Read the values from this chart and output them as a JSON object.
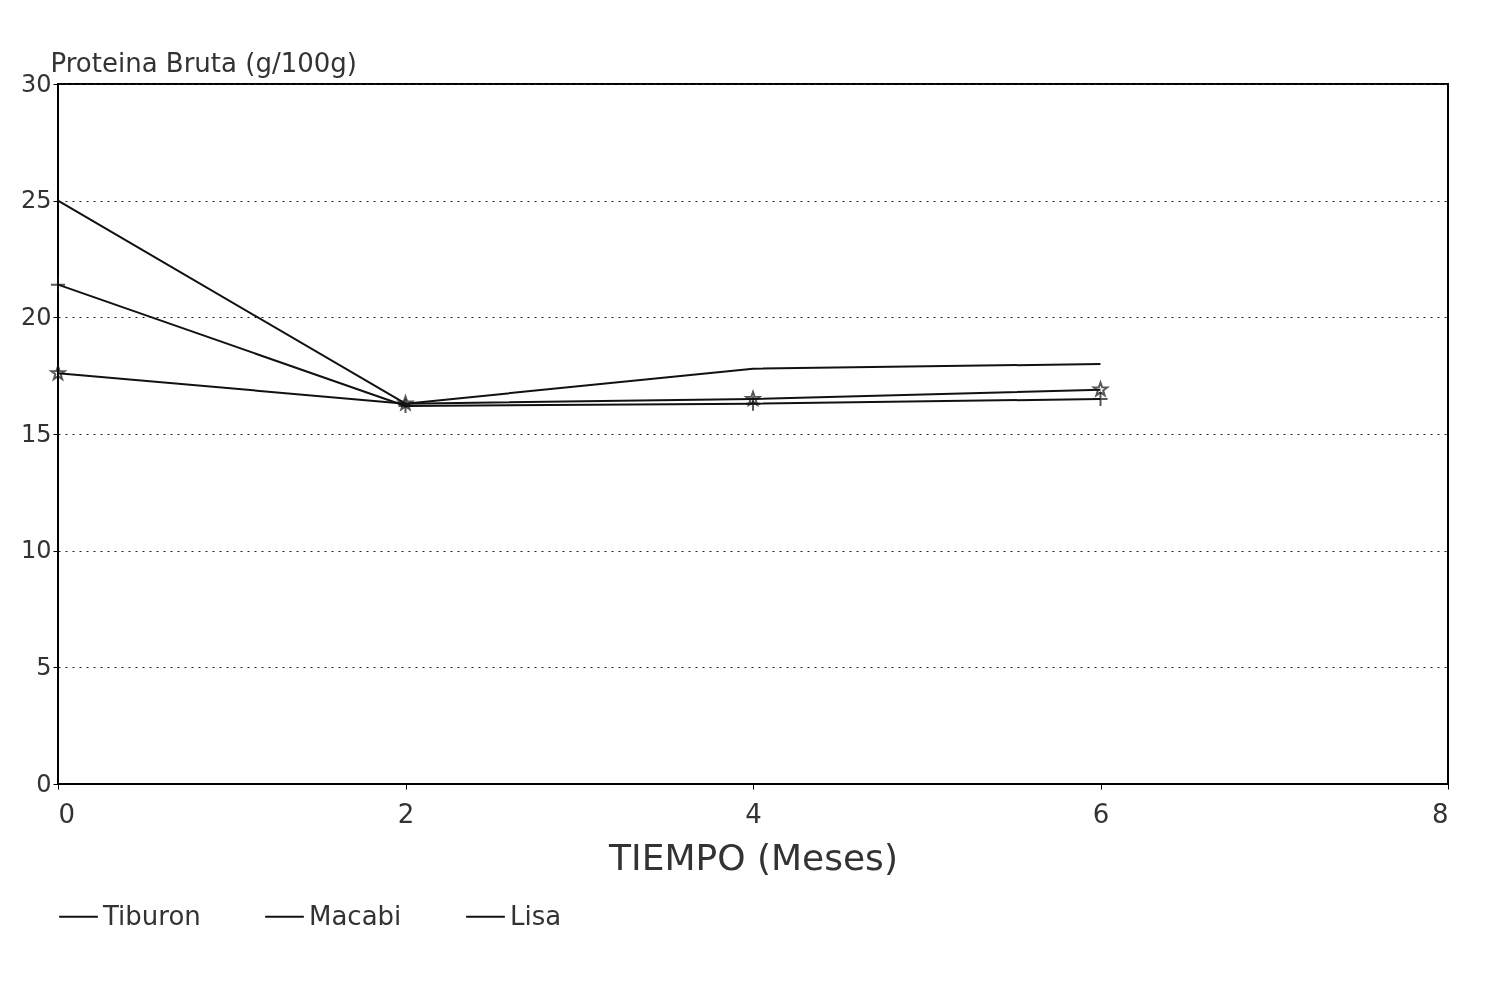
{
  "chart_data": {
    "type": "line",
    "xlabel": "TIEMPO (Meses)",
    "ylabel": "Proteina Bruta (g/100g)",
    "x": [
      0,
      2,
      4,
      6
    ],
    "series": [
      {
        "name": "Tiburon",
        "color": "#111111",
        "marker": "none",
        "values": [
          25,
          16.3,
          17.8,
          18.0
        ]
      },
      {
        "name": "Macabi",
        "color": "#111111",
        "marker": "cross",
        "values": [
          21.4,
          16.2,
          16.3,
          16.5
        ]
      },
      {
        "name": "Lisa",
        "color": "#111111",
        "marker": "star",
        "values": [
          17.6,
          16.3,
          16.5,
          16.9
        ]
      }
    ],
    "xlim": [
      0,
      8
    ],
    "xticks": [
      0,
      2,
      4,
      6,
      8
    ],
    "ylim": [
      0,
      30
    ],
    "yticks": [
      0,
      5,
      10,
      15,
      20,
      25,
      30
    ],
    "grid": "y",
    "legend": "bottom",
    "line_style": "solid"
  }
}
